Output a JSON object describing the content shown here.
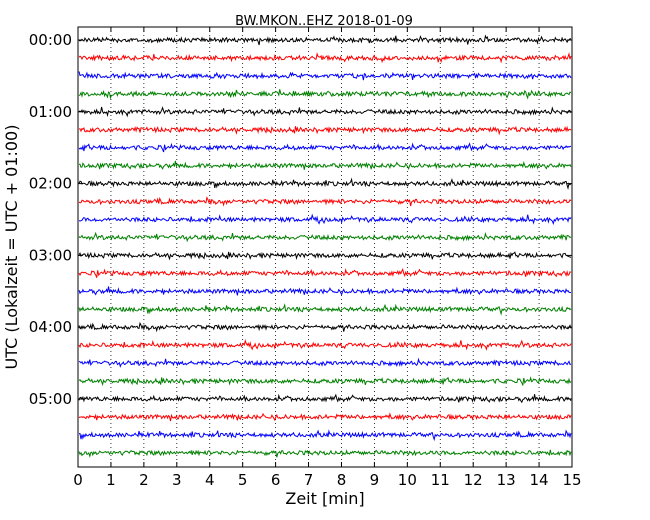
{
  "chart_data": {
    "type": "line",
    "title": "BW.MKON..EHZ 2018-01-09",
    "xlabel": "Zeit  [min]",
    "ylabel": "UTC (Lokalzeit = UTC + 01:00)",
    "xlim": [
      0,
      15
    ],
    "x_ticks": [
      "0",
      "1",
      "2",
      "3",
      "4",
      "5",
      "6",
      "7",
      "8",
      "9",
      "10",
      "11",
      "12",
      "13",
      "14",
      "15"
    ],
    "y_ticks": [
      "00:00",
      "01:00",
      "02:00",
      "03:00",
      "04:00",
      "05:00"
    ],
    "grid": "vertical dotted at each minute",
    "trace_interval_minutes": 15,
    "trace_count": 24,
    "color_cycle": [
      "#000000",
      "#ff0000",
      "#0000ff",
      "#008000"
    ]
  }
}
